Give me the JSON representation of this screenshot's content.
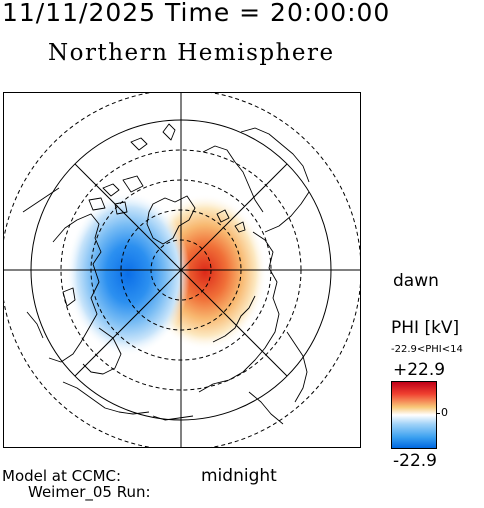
{
  "header": {
    "datetime": "11/11/2025 Time = 20:00:00",
    "hemisphere": "Northern Hemisphere"
  },
  "map": {
    "side_label_dawn": "dawn",
    "bottom_label_midnight": "midnight",
    "latitude_rings_dashed": [
      70,
      60,
      50
    ],
    "latitude_rings_solid": [
      80,
      40
    ],
    "potential_pattern": {
      "positive_cell": "dawn side / midnight-dawn sector (red)",
      "negative_cell": "dusk side (blue)"
    }
  },
  "colorbar": {
    "title": "PHI [kV]",
    "range_text": "-22.9<PHI<14",
    "max_label": "+22.9",
    "zero_label": "0",
    "min_label": "-22.9",
    "colors": {
      "max": "#c00018",
      "mid": "#ffffff",
      "min": "#0068e0"
    }
  },
  "footer": {
    "model_line1": "Model at CCMC:",
    "model_line2": "Weimer_05 Run:"
  }
}
